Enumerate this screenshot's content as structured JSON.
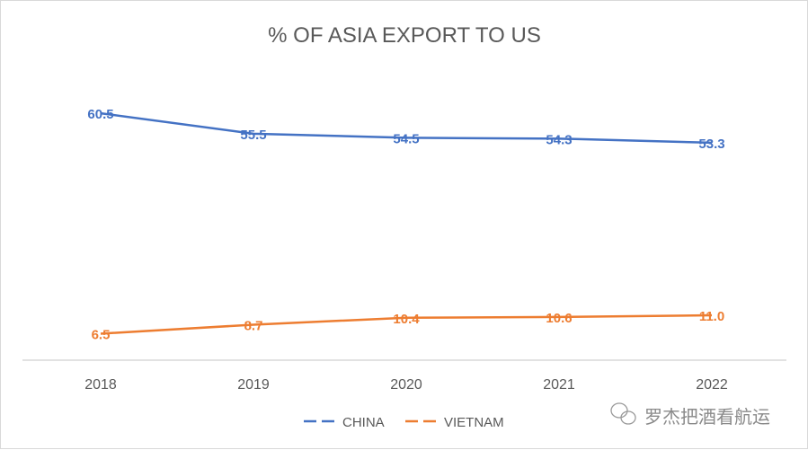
{
  "chart_data": {
    "type": "line",
    "title": "% OF ASIA EXPORT TO US",
    "categories": [
      "2018",
      "2019",
      "2020",
      "2021",
      "2022"
    ],
    "series": [
      {
        "name": "CHINA",
        "values": [
          60.5,
          55.5,
          54.5,
          54.3,
          53.3
        ],
        "color": "#4472c4",
        "labels": [
          "60.5",
          "55.5",
          "54.5",
          "54.3",
          "53.3"
        ]
      },
      {
        "name": "VIETNAM",
        "values": [
          6.5,
          8.7,
          10.4,
          10.6,
          11.0
        ],
        "color": "#ed7d31",
        "labels": [
          "6.5",
          "8.7",
          "10.4",
          "10.6",
          "11.0"
        ]
      }
    ],
    "ylim": [
      0,
      70
    ],
    "grid": false,
    "legend": "bottom",
    "axis_color": "#d9d9d9"
  },
  "watermark": {
    "text": "罗杰把酒看航运",
    "icon": "wechat-icon"
  }
}
